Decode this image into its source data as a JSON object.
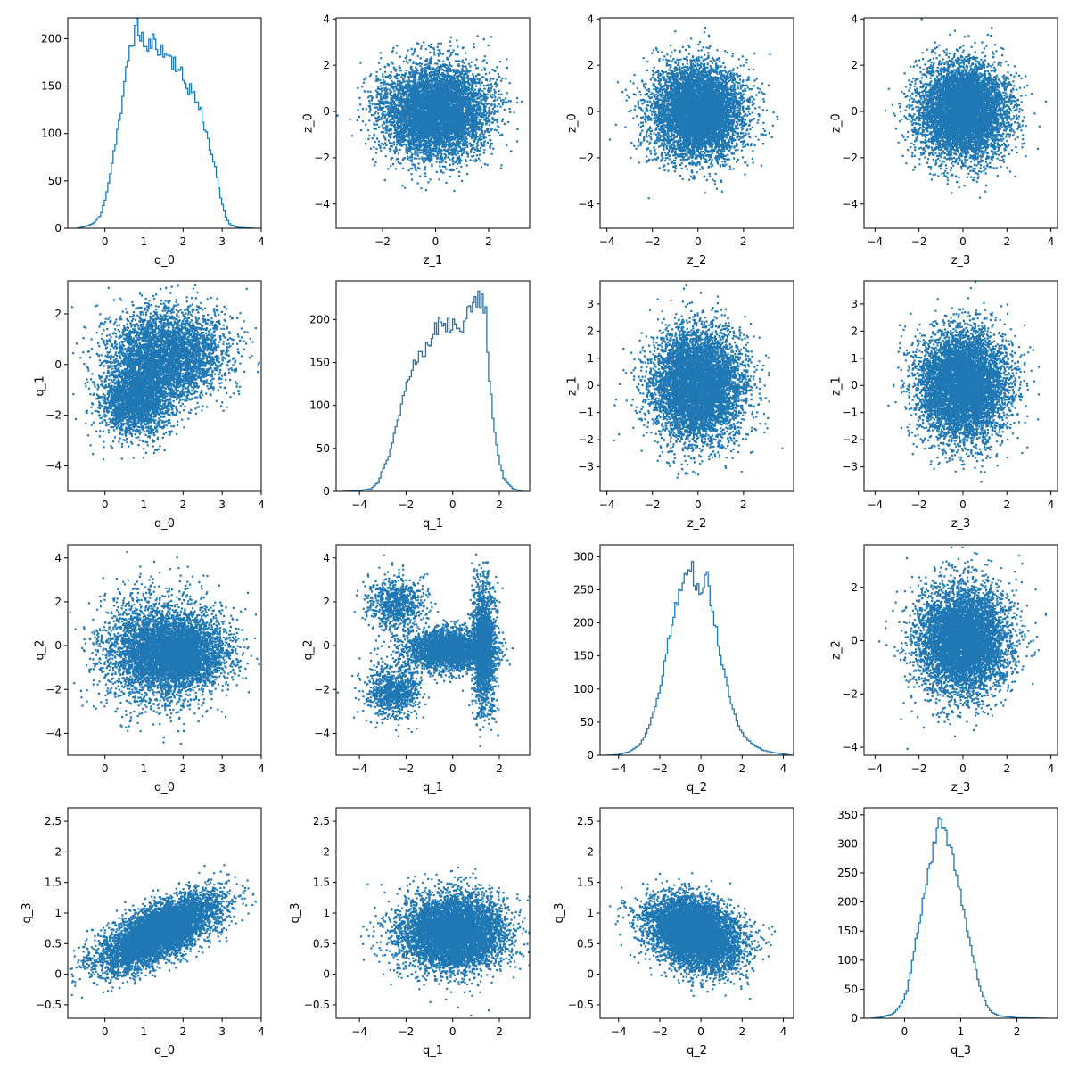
{
  "colors": {
    "series": "#1f77b4",
    "axes": "#000000",
    "background": "#ffffff"
  },
  "chart_data": [
    {
      "id": "r0c0",
      "type": "histogram",
      "row": 0,
      "col": 0,
      "xlabel": "q_0",
      "ylabel": "",
      "xlim": [
        -0.95,
        4.0
      ],
      "ylim": [
        0,
        222
      ],
      "xticks": [
        0,
        1,
        2,
        3,
        4
      ],
      "yticks": [
        0,
        50,
        100,
        150,
        200
      ],
      "profile": [
        [
          -0.7,
          0
        ],
        [
          -0.5,
          2
        ],
        [
          -0.3,
          5
        ],
        [
          -0.1,
          14
        ],
        [
          0.0,
          30
        ],
        [
          0.15,
          60
        ],
        [
          0.3,
          98
        ],
        [
          0.45,
          130
        ],
        [
          0.6,
          182
        ],
        [
          0.7,
          200
        ],
        [
          0.8,
          210
        ],
        [
          0.9,
          208
        ],
        [
          1.0,
          196
        ],
        [
          1.1,
          185
        ],
        [
          1.2,
          200
        ],
        [
          1.3,
          190
        ],
        [
          1.4,
          195
        ],
        [
          1.5,
          180
        ],
        [
          1.6,
          188
        ],
        [
          1.7,
          175
        ],
        [
          1.8,
          178
        ],
        [
          1.9,
          165
        ],
        [
          2.0,
          158
        ],
        [
          2.1,
          150
        ],
        [
          2.2,
          148
        ],
        [
          2.3,
          138
        ],
        [
          2.4,
          130
        ],
        [
          2.5,
          118
        ],
        [
          2.6,
          100
        ],
        [
          2.7,
          85
        ],
        [
          2.8,
          68
        ],
        [
          2.9,
          45
        ],
        [
          3.0,
          25
        ],
        [
          3.1,
          12
        ],
        [
          3.2,
          4
        ],
        [
          3.4,
          1
        ],
        [
          3.8,
          0
        ]
      ],
      "bin_range": [
        -0.7,
        3.85
      ],
      "bins": 100,
      "noise": 0.06,
      "seed": 11
    },
    {
      "id": "r0c1",
      "type": "scatter",
      "row": 0,
      "col": 1,
      "xlabel": "z_1",
      "ylabel": "z_0",
      "xlim": [
        -3.75,
        3.55
      ],
      "ylim": [
        -5.05,
        4.05
      ],
      "xticks": [
        -2,
        0,
        2
      ],
      "yticks": [
        -4,
        -2,
        0,
        2,
        4
      ],
      "points": 6500,
      "seed": 21,
      "shape": "gaussian",
      "center": [
        0,
        0
      ],
      "spread": [
        1,
        1
      ]
    },
    {
      "id": "r0c2",
      "type": "scatter",
      "row": 0,
      "col": 2,
      "xlabel": "z_2",
      "ylabel": "z_0",
      "xlim": [
        -4.3,
        4.2
      ],
      "ylim": [
        -5.05,
        4.05
      ],
      "xticks": [
        -4,
        -2,
        0,
        2
      ],
      "yticks": [
        -4,
        -2,
        0,
        2,
        4
      ],
      "points": 6500,
      "seed": 22,
      "shape": "gaussian",
      "center": [
        0,
        0
      ],
      "spread": [
        1,
        1
      ]
    },
    {
      "id": "r0c3",
      "type": "scatter",
      "row": 0,
      "col": 3,
      "xlabel": "z_3",
      "ylabel": "z_0",
      "xlim": [
        -4.5,
        4.3
      ],
      "ylim": [
        -5.05,
        4.05
      ],
      "xticks": [
        -4,
        -2,
        0,
        2,
        4
      ],
      "yticks": [
        -4,
        -2,
        0,
        2,
        4
      ],
      "points": 6500,
      "seed": 23,
      "shape": "gaussian",
      "center": [
        0,
        0
      ],
      "spread": [
        1,
        1
      ]
    },
    {
      "id": "r1c0",
      "type": "scatter",
      "row": 1,
      "col": 0,
      "xlabel": "q_0",
      "ylabel": "q_1",
      "xlim": [
        -0.95,
        4.0
      ],
      "ylim": [
        -5.0,
        3.3
      ],
      "xticks": [
        0,
        1,
        2,
        3,
        4
      ],
      "yticks": [
        -4,
        -2,
        0,
        2
      ],
      "points": 6500,
      "seed": 31,
      "shape": "cluster-blob",
      "clusters": [
        {
          "weight": 0.6,
          "center": [
            1.6,
            0.4
          ],
          "spread": [
            0.75,
            0.9
          ]
        },
        {
          "weight": 0.4,
          "center": [
            0.8,
            -1.4
          ],
          "spread": [
            0.45,
            0.7
          ]
        }
      ]
    },
    {
      "id": "r1c1",
      "type": "histogram",
      "row": 1,
      "col": 1,
      "xlabel": "q_1",
      "ylabel": "",
      "xlim": [
        -5.0,
        3.3
      ],
      "ylim": [
        0,
        245
      ],
      "xticks": [
        -4,
        -2,
        0,
        2
      ],
      "yticks": [
        0,
        50,
        100,
        150,
        200
      ],
      "profile": [
        [
          -4.7,
          0
        ],
        [
          -4.0,
          1
        ],
        [
          -3.5,
          3
        ],
        [
          -3.2,
          10
        ],
        [
          -3.0,
          25
        ],
        [
          -2.7,
          45
        ],
        [
          -2.5,
          70
        ],
        [
          -2.2,
          100
        ],
        [
          -2.0,
          125
        ],
        [
          -1.7,
          145
        ],
        [
          -1.5,
          160
        ],
        [
          -1.2,
          165
        ],
        [
          -1.0,
          175
        ],
        [
          -0.7,
          190
        ],
        [
          -0.5,
          200
        ],
        [
          -0.2,
          195
        ],
        [
          0.0,
          200
        ],
        [
          0.2,
          190
        ],
        [
          0.4,
          195
        ],
        [
          0.6,
          200
        ],
        [
          0.8,
          215
        ],
        [
          1.0,
          220
        ],
        [
          1.2,
          222
        ],
        [
          1.4,
          215
        ],
        [
          1.5,
          170
        ],
        [
          1.6,
          120
        ],
        [
          1.8,
          70
        ],
        [
          2.0,
          35
        ],
        [
          2.2,
          15
        ],
        [
          2.4,
          8
        ],
        [
          2.6,
          3
        ],
        [
          3.0,
          0
        ]
      ],
      "bin_range": [
        -4.7,
        3.0
      ],
      "bins": 100,
      "noise": 0.06,
      "seed": 12
    },
    {
      "id": "r1c2",
      "type": "scatter",
      "row": 1,
      "col": 2,
      "xlabel": "z_2",
      "ylabel": "z_1",
      "xlim": [
        -4.3,
        4.2
      ],
      "ylim": [
        -3.9,
        3.85
      ],
      "xticks": [
        -4,
        -2,
        0,
        2
      ],
      "yticks": [
        -3,
        -2,
        -1,
        0,
        1,
        2,
        3
      ],
      "points": 6500,
      "seed": 32,
      "shape": "gaussian",
      "center": [
        0,
        0
      ],
      "spread": [
        1,
        1
      ]
    },
    {
      "id": "r1c3",
      "type": "scatter",
      "row": 1,
      "col": 3,
      "xlabel": "z_3",
      "ylabel": "z_1",
      "xlim": [
        -4.5,
        4.3
      ],
      "ylim": [
        -3.9,
        3.85
      ],
      "xticks": [
        -4,
        -2,
        0,
        2,
        4
      ],
      "yticks": [
        -3,
        -2,
        -1,
        0,
        1,
        2,
        3
      ],
      "points": 6500,
      "seed": 33,
      "shape": "gaussian",
      "center": [
        0,
        0
      ],
      "spread": [
        1,
        1
      ]
    },
    {
      "id": "r2c0",
      "type": "scatter",
      "row": 2,
      "col": 0,
      "xlabel": "q_0",
      "ylabel": "q_2",
      "xlim": [
        -0.95,
        4.0
      ],
      "ylim": [
        -5.0,
        4.6
      ],
      "xticks": [
        0,
        1,
        2,
        3,
        4
      ],
      "yticks": [
        -4,
        -2,
        0,
        2,
        4
      ],
      "points": 6500,
      "seed": 41,
      "shape": "cluster-blob",
      "clusters": [
        {
          "weight": 0.55,
          "center": [
            1.4,
            -0.2
          ],
          "spread": [
            0.75,
            1.2
          ]
        },
        {
          "weight": 0.45,
          "center": [
            1.9,
            -0.4
          ],
          "spread": [
            0.6,
            0.7
          ]
        }
      ]
    },
    {
      "id": "r2c1",
      "type": "scatter",
      "row": 2,
      "col": 1,
      "xlabel": "q_1",
      "ylabel": "q_2",
      "xlim": [
        -5.0,
        3.3
      ],
      "ylim": [
        -5.0,
        4.6
      ],
      "xticks": [
        -4,
        -2,
        0,
        2
      ],
      "yticks": [
        -4,
        -2,
        0,
        2,
        4
      ],
      "points": 6500,
      "seed": 42,
      "shape": "x-shape",
      "clusters": [
        {
          "weight": 0.45,
          "center": [
            -0.2,
            -0.2
          ],
          "spread": [
            0.9,
            0.45
          ]
        },
        {
          "weight": 0.27,
          "center": [
            1.35,
            0.0
          ],
          "spread": [
            0.25,
            1.4
          ]
        },
        {
          "weight": 0.14,
          "center": [
            -2.4,
            1.9
          ],
          "spread": [
            0.6,
            0.6
          ],
          "diag": -1
        },
        {
          "weight": 0.14,
          "center": [
            -2.5,
            -2.1
          ],
          "spread": [
            0.6,
            0.6
          ],
          "diag": 1
        }
      ]
    },
    {
      "id": "r2c2",
      "type": "histogram",
      "row": 2,
      "col": 2,
      "xlabel": "q_2",
      "ylabel": "",
      "xlim": [
        -4.9,
        4.5
      ],
      "ylim": [
        0,
        318
      ],
      "xticks": [
        -4,
        -2,
        0,
        2,
        4
      ],
      "yticks": [
        0,
        50,
        100,
        150,
        200,
        250,
        300
      ],
      "profile": [
        [
          -4.6,
          0
        ],
        [
          -4.0,
          1
        ],
        [
          -3.5,
          5
        ],
        [
          -3.0,
          15
        ],
        [
          -2.7,
          30
        ],
        [
          -2.4,
          55
        ],
        [
          -2.1,
          90
        ],
        [
          -1.8,
          130
        ],
        [
          -1.6,
          170
        ],
        [
          -1.4,
          200
        ],
        [
          -1.2,
          230
        ],
        [
          -1.0,
          255
        ],
        [
          -0.8,
          275
        ],
        [
          -0.6,
          290
        ],
        [
          -0.4,
          280
        ],
        [
          -0.3,
          262
        ],
        [
          -0.1,
          250
        ],
        [
          0.1,
          258
        ],
        [
          0.3,
          265
        ],
        [
          0.5,
          232
        ],
        [
          0.7,
          200
        ],
        [
          0.9,
          160
        ],
        [
          1.1,
          130
        ],
        [
          1.3,
          100
        ],
        [
          1.5,
          75
        ],
        [
          1.7,
          55
        ],
        [
          1.9,
          38
        ],
        [
          2.2,
          25
        ],
        [
          2.6,
          15
        ],
        [
          3.0,
          8
        ],
        [
          3.5,
          4
        ],
        [
          4.0,
          2
        ],
        [
          4.4,
          0
        ]
      ],
      "bin_range": [
        -4.6,
        4.4
      ],
      "bins": 100,
      "noise": 0.05,
      "seed": 13
    },
    {
      "id": "r2c3",
      "type": "scatter",
      "row": 2,
      "col": 3,
      "xlabel": "z_3",
      "ylabel": "z_2",
      "xlim": [
        -4.5,
        4.3
      ],
      "ylim": [
        -4.3,
        3.6
      ],
      "xticks": [
        -4,
        -2,
        0,
        2,
        4
      ],
      "yticks": [
        -4,
        -2,
        0,
        2
      ],
      "points": 6500,
      "seed": 43,
      "shape": "gaussian",
      "center": [
        0,
        0
      ],
      "spread": [
        1,
        1
      ]
    },
    {
      "id": "r3c0",
      "type": "scatter",
      "row": 3,
      "col": 0,
      "xlabel": "q_0",
      "ylabel": "q_3",
      "xlim": [
        -0.95,
        4.0
      ],
      "ylim": [
        -0.72,
        2.72
      ],
      "xticks": [
        0,
        1,
        2,
        3,
        4
      ],
      "yticks": [
        -0.5,
        0.0,
        0.5,
        1.0,
        1.5,
        2.0,
        2.5
      ],
      "points": 6500,
      "seed": 51,
      "shape": "trend",
      "center": [
        1.4,
        0.68
      ],
      "spread": [
        0.75,
        0.22
      ],
      "slope": 0.28
    },
    {
      "id": "r3c1",
      "type": "scatter",
      "row": 3,
      "col": 1,
      "xlabel": "q_1",
      "ylabel": "q_3",
      "xlim": [
        -5.0,
        3.3
      ],
      "ylim": [
        -0.72,
        2.72
      ],
      "xticks": [
        -4,
        -2,
        0,
        2
      ],
      "yticks": [
        -0.5,
        0.0,
        0.5,
        1.0,
        1.5,
        2.0,
        2.5
      ],
      "points": 6500,
      "seed": 52,
      "shape": "gaussian",
      "center": [
        0.0,
        0.68
      ],
      "spread": [
        1.1,
        0.3
      ]
    },
    {
      "id": "r3c2",
      "type": "scatter",
      "row": 3,
      "col": 2,
      "xlabel": "q_2",
      "ylabel": "q_3",
      "xlim": [
        -4.9,
        4.5
      ],
      "ylim": [
        -0.72,
        2.72
      ],
      "xticks": [
        -4,
        -2,
        0,
        2,
        4
      ],
      "yticks": [
        -0.5,
        0.0,
        0.5,
        1.0,
        1.5,
        2.0,
        2.5
      ],
      "points": 6500,
      "seed": 53,
      "shape": "trend",
      "center": [
        -0.3,
        0.68
      ],
      "spread": [
        1.1,
        0.28
      ],
      "slope": -0.08
    },
    {
      "id": "r3c3",
      "type": "histogram",
      "row": 3,
      "col": 3,
      "xlabel": "q_3",
      "ylabel": "",
      "xlim": [
        -0.72,
        2.72
      ],
      "ylim": [
        0,
        362
      ],
      "xticks": [
        0,
        1,
        2
      ],
      "yticks": [
        0,
        50,
        100,
        150,
        200,
        250,
        300,
        350
      ],
      "profile": [
        [
          -0.6,
          0
        ],
        [
          -0.4,
          2
        ],
        [
          -0.2,
          8
        ],
        [
          -0.05,
          25
        ],
        [
          0.05,
          50
        ],
        [
          0.15,
          100
        ],
        [
          0.25,
          160
        ],
        [
          0.35,
          215
        ],
        [
          0.45,
          270
        ],
        [
          0.55,
          300
        ],
        [
          0.62,
          340
        ],
        [
          0.7,
          330
        ],
        [
          0.78,
          310
        ],
        [
          0.85,
          280
        ],
        [
          0.95,
          240
        ],
        [
          1.05,
          190
        ],
        [
          1.15,
          140
        ],
        [
          1.25,
          90
        ],
        [
          1.35,
          50
        ],
        [
          1.45,
          25
        ],
        [
          1.55,
          10
        ],
        [
          1.7,
          4
        ],
        [
          2.0,
          1
        ],
        [
          2.5,
          0
        ]
      ],
      "bin_range": [
        -0.6,
        2.55
      ],
      "bins": 100,
      "noise": 0.05,
      "seed": 14
    }
  ]
}
